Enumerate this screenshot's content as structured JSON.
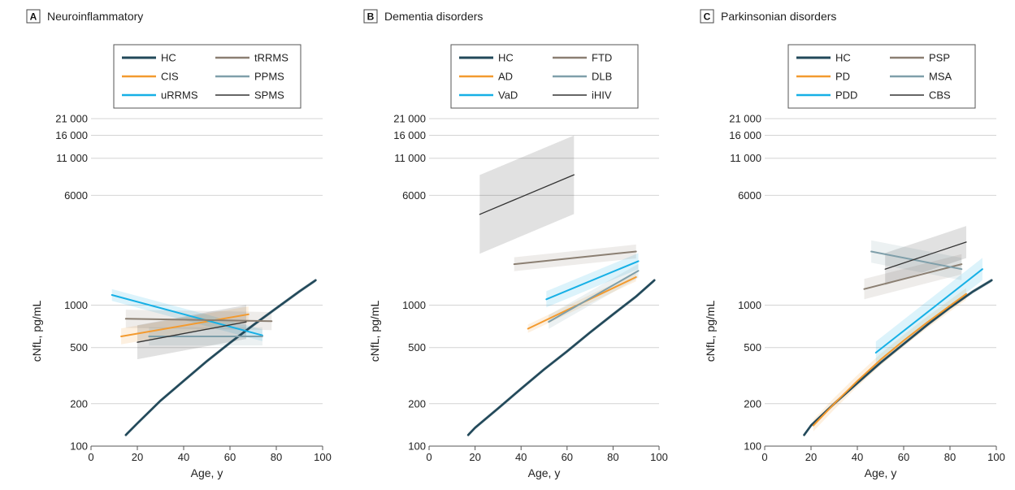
{
  "colors": {
    "HC": "#22495a",
    "series2": "#f39a2f",
    "series3": "#16b0e6",
    "series4": "#8b7f72",
    "series5": "#7f9faa",
    "series6": "#333333",
    "grid": "#d4d4d4",
    "axis": "#555555"
  },
  "chart_data": [
    {
      "type": "line",
      "letter": "A",
      "title": "Neuroinflammatory",
      "xlabel": "Age, y",
      "ylabel": "cNfL, pg/mL",
      "xlim": [
        0,
        100
      ],
      "ylim": [
        100,
        21000
      ],
      "yscale": "log",
      "xticks": [
        0,
        20,
        40,
        60,
        80,
        100
      ],
      "yticks": [
        100,
        200,
        500,
        1000,
        6000,
        11000,
        16000,
        21000
      ],
      "ytick_labels": [
        "100",
        "200",
        "500",
        "1000",
        "6000",
        "11 000",
        "16 000",
        "21 000"
      ],
      "legend_position": "top",
      "series": [
        {
          "name": "HC",
          "x": [
            15,
            20,
            30,
            40,
            50,
            60,
            70,
            80,
            90,
            97
          ],
          "y": [
            120,
            145,
            210,
            290,
            400,
            540,
            720,
            950,
            1250,
            1500
          ],
          "band": 0.03
        },
        {
          "name": "CIS",
          "x": [
            13,
            68
          ],
          "y": [
            600,
            860
          ],
          "band": 0.14
        },
        {
          "name": "uRRMS",
          "x": [
            9,
            74
          ],
          "y": [
            1180,
            610
          ],
          "band": 0.1
        },
        {
          "name": "tRRMS",
          "x": [
            15,
            78
          ],
          "y": [
            800,
            770
          ],
          "band": 0.16
        },
        {
          "name": "PPMS",
          "x": [
            25,
            74
          ],
          "y": [
            600,
            600
          ],
          "band": 0.16
        },
        {
          "name": "SPMS",
          "x": [
            20,
            67
          ],
          "y": [
            545,
            760
          ],
          "band": 0.32
        }
      ]
    },
    {
      "type": "line",
      "letter": "B",
      "title": "Dementia disorders",
      "xlabel": "Age, y",
      "ylabel": "cNfL, pg/mL",
      "xlim": [
        0,
        100
      ],
      "ylim": [
        100,
        21000
      ],
      "yscale": "log",
      "xticks": [
        0,
        20,
        40,
        60,
        80,
        100
      ],
      "yticks": [
        100,
        200,
        500,
        1000,
        6000,
        11000,
        16000,
        21000
      ],
      "ytick_labels": [
        "100",
        "200",
        "500",
        "1000",
        "6000",
        "11 000",
        "16 000",
        "21 000"
      ],
      "legend_position": "top",
      "series": [
        {
          "name": "HC",
          "x": [
            17,
            20,
            30,
            40,
            50,
            60,
            70,
            80,
            90,
            98
          ],
          "y": [
            120,
            135,
            185,
            255,
            350,
            470,
            640,
            860,
            1150,
            1500
          ],
          "band": 0.03
        },
        {
          "name": "AD",
          "x": [
            43,
            90
          ],
          "y": [
            680,
            1580
          ],
          "band": 0.07
        },
        {
          "name": "VaD",
          "x": [
            51,
            91
          ],
          "y": [
            1100,
            2050
          ],
          "band": 0.14
        },
        {
          "name": "FTD",
          "x": [
            37,
            90
          ],
          "y": [
            1950,
            2400
          ],
          "band": 0.12
        },
        {
          "name": "DLB",
          "x": [
            52,
            91
          ],
          "y": [
            760,
            1750
          ],
          "band": 0.12
        },
        {
          "name": "iHIV",
          "x": [
            22,
            63
          ],
          "y": [
            4400,
            8400
          ],
          "band": 0.9
        }
      ]
    },
    {
      "type": "line",
      "letter": "C",
      "title": "Parkinsonian disorders",
      "xlabel": "Age, y",
      "ylabel": "cNfL, pg/mL",
      "xlim": [
        0,
        100
      ],
      "ylim": [
        100,
        21000
      ],
      "yscale": "log",
      "xticks": [
        0,
        20,
        40,
        60,
        80,
        100
      ],
      "yticks": [
        100,
        200,
        500,
        1000,
        6000,
        11000,
        16000,
        21000
      ],
      "ytick_labels": [
        "100",
        "200",
        "500",
        "1000",
        "6000",
        "11 000",
        "16 000",
        "21 000"
      ],
      "legend_position": "top",
      "series": [
        {
          "name": "HC",
          "x": [
            17,
            20,
            30,
            40,
            50,
            60,
            70,
            80,
            90,
            98
          ],
          "y": [
            120,
            140,
            200,
            280,
            390,
            530,
            720,
            960,
            1250,
            1500
          ],
          "band": 0.03
        },
        {
          "name": "PD",
          "x": [
            21,
            30,
            40,
            50,
            60,
            70,
            80,
            87
          ],
          "y": [
            140,
            200,
            290,
            410,
            560,
            750,
            990,
            1200
          ],
          "band": 0.1
        },
        {
          "name": "PDD",
          "x": [
            48,
            94
          ],
          "y": [
            460,
            1800
          ],
          "band": 0.2
        },
        {
          "name": "PSP",
          "x": [
            43,
            85
          ],
          "y": [
            1300,
            1950
          ],
          "band": 0.18
        },
        {
          "name": "MSA",
          "x": [
            46,
            85
          ],
          "y": [
            2400,
            1800
          ],
          "band": 0.2
        },
        {
          "name": "CBS",
          "x": [
            52,
            87
          ],
          "y": [
            1800,
            2800
          ],
          "band": 0.3
        }
      ]
    }
  ]
}
